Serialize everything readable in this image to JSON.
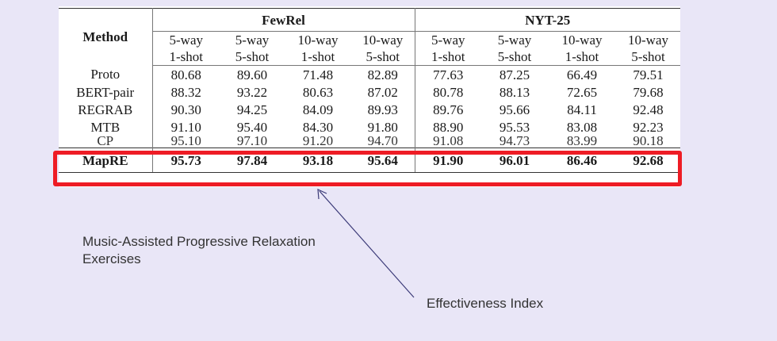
{
  "table": {
    "method_header": "Method",
    "groups": [
      "FewRel",
      "NYT-25"
    ],
    "sub_line1": [
      "5-way",
      "5-way",
      "10-way",
      "10-way",
      "5-way",
      "5-way",
      "10-way",
      "10-way"
    ],
    "sub_line2": [
      "1-shot",
      "5-shot",
      "1-shot",
      "5-shot",
      "1-shot",
      "5-shot",
      "1-shot",
      "5-shot"
    ],
    "rows": [
      {
        "method": "Proto",
        "values": [
          "80.68",
          "89.60",
          "71.48",
          "82.89",
          "77.63",
          "87.25",
          "66.49",
          "79.51"
        ]
      },
      {
        "method": "BERT-pair",
        "values": [
          "88.32",
          "93.22",
          "80.63",
          "87.02",
          "80.78",
          "88.13",
          "72.65",
          "79.68"
        ]
      },
      {
        "method": "REGRAB",
        "values": [
          "90.30",
          "94.25",
          "84.09",
          "89.93",
          "89.76",
          "95.66",
          "84.11",
          "92.48"
        ]
      },
      {
        "method": "MTB",
        "values": [
          "91.10",
          "95.40",
          "84.30",
          "91.80",
          "88.90",
          "95.53",
          "83.08",
          "92.23"
        ]
      }
    ],
    "clipped_row": {
      "method": "CP",
      "values": [
        "95.10",
        "97.10",
        "91.20",
        "94.70",
        "91.08",
        "94.73",
        "83.99",
        "90.18"
      ]
    },
    "final_row": {
      "method": "MapRE",
      "values": [
        "95.73",
        "97.84",
        "93.18",
        "95.64",
        "91.90",
        "96.01",
        "86.46",
        "92.68"
      ]
    }
  },
  "annotations": {
    "left_caption": "Music-Assisted Progressive Relaxation Exercises",
    "right_caption": "Effectiveness Index"
  },
  "colors": {
    "background": "#e9e6f7",
    "highlight": "#ee1c25",
    "arrow": "#3b3a78"
  }
}
